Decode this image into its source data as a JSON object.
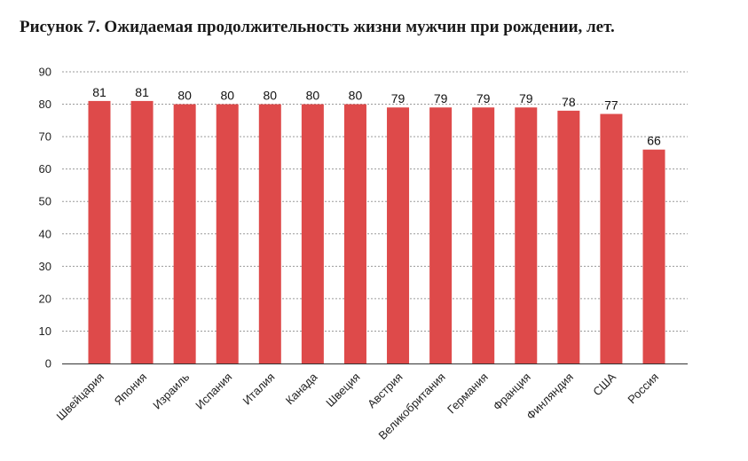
{
  "chart_data": {
    "type": "bar",
    "title": "Рисунок 7. Ожидаемая продолжительность жизни мужчин при рождении, лет.",
    "xlabel": "",
    "ylabel": "",
    "ylim": [
      0,
      90
    ],
    "yticks": [
      0,
      10,
      20,
      30,
      40,
      50,
      60,
      70,
      80,
      90
    ],
    "grid": true,
    "legend": "none",
    "bar_color": "#de4a4a",
    "categories": [
      "Швейцария",
      "Япония",
      "Израиль",
      "Испания",
      "Италия",
      "Канада",
      "Швеция",
      "Австрия",
      "Великобритания",
      "Германия",
      "Франция",
      "Финляндия",
      "США",
      "Россия"
    ],
    "values": [
      81,
      81,
      80,
      80,
      80,
      80,
      80,
      79,
      79,
      79,
      79,
      78,
      77,
      66
    ],
    "data_labels": [
      "81",
      "81",
      "80",
      "80",
      "80",
      "80",
      "80",
      "79",
      "79",
      "79",
      "79",
      "78",
      "77",
      "66"
    ]
  }
}
